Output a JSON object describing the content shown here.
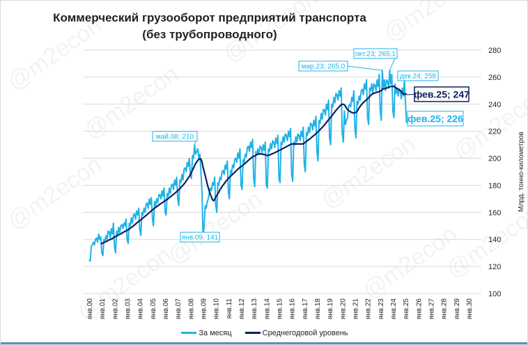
{
  "watermark": "@m2econ",
  "colors": {
    "monthly": "#1fb2e8",
    "average": "#0d1f5c",
    "grid": "#d9d9d9"
  },
  "chart_data": {
    "type": "line",
    "title": [
      "Коммерческий грузооборот предприятий транспорта",
      "(без трубопроводного)"
    ],
    "ylabel": "Млрд. тонно-километров",
    "ylim": [
      100,
      280
    ],
    "yticks": [
      100,
      120,
      140,
      160,
      180,
      200,
      220,
      240,
      260,
      280
    ],
    "xticks": [
      "янв.00",
      "янв.01",
      "янв.02",
      "янв.03",
      "янв.04",
      "янв.05",
      "янв.06",
      "янв.07",
      "янв.08",
      "янв.09",
      "янв.10",
      "янв.11",
      "янв.12",
      "янв.13",
      "янв.14",
      "янв.15",
      "янв.16",
      "янв.17",
      "янв.18",
      "янв.19",
      "янв.20",
      "янв.21",
      "янв.22",
      "янв.23",
      "янв.24",
      "янв.25",
      "янв.26",
      "янв.27",
      "янв.28",
      "янв.29",
      "янв.30"
    ],
    "x_start": "янв.00",
    "x_end": "янв.30",
    "grid": true,
    "legend_placement": "bottom",
    "series": [
      {
        "name": "За месяц",
        "frequency": "monthly",
        "start": "янв.00",
        "values": [
          125,
          124,
          135,
          136,
          138,
          136,
          140,
          141,
          138,
          144,
          140,
          142,
          130,
          128,
          140,
          139,
          143,
          140,
          146,
          146,
          141,
          148,
          144,
          152,
          135,
          130,
          146,
          144,
          149,
          145,
          150,
          151,
          148,
          152,
          150,
          155,
          140,
          137,
          152,
          150,
          156,
          152,
          158,
          159,
          155,
          161,
          158,
          163,
          147,
          143,
          160,
          158,
          163,
          160,
          166,
          167,
          163,
          170,
          166,
          171,
          155,
          150,
          168,
          165,
          170,
          167,
          173,
          173,
          170,
          176,
          172,
          178,
          160,
          158,
          174,
          172,
          178,
          174,
          180,
          181,
          177,
          184,
          180,
          186,
          170,
          165,
          184,
          182,
          188,
          184,
          192,
          193,
          190,
          197,
          194,
          200,
          188,
          185,
          202,
          200,
          210,
          203,
          205,
          207,
          200,
          203,
          190,
          175,
          141,
          150,
          165,
          163,
          168,
          170,
          175,
          178,
          176,
          182,
          180,
          186,
          165,
          160,
          182,
          180,
          186,
          184,
          190,
          191,
          188,
          195,
          192,
          198,
          175,
          170,
          191,
          189,
          195,
          193,
          199,
          200,
          197,
          204,
          200,
          207,
          180,
          177,
          199,
          197,
          203,
          201,
          208,
          209,
          205,
          212,
          208,
          214,
          185,
          179,
          205,
          203,
          207,
          203,
          209,
          208,
          204,
          210,
          206,
          212,
          180,
          178,
          207,
          205,
          211,
          207,
          213,
          212,
          208,
          215,
          211,
          217,
          185,
          182,
          212,
          210,
          216,
          212,
          218,
          217,
          213,
          220,
          216,
          222,
          188,
          183,
          212,
          210,
          216,
          212,
          218,
          217,
          213,
          220,
          216,
          223,
          195,
          190,
          219,
          217,
          223,
          219,
          226,
          225,
          221,
          228,
          224,
          231,
          205,
          198,
          228,
          226,
          233,
          229,
          236,
          236,
          232,
          240,
          236,
          243,
          215,
          210,
          240,
          238,
          245,
          241,
          248,
          247,
          243,
          250,
          246,
          252,
          218,
          212,
          235,
          225,
          228,
          230,
          238,
          240,
          238,
          245,
          242,
          250,
          222,
          215,
          242,
          240,
          246,
          243,
          250,
          251,
          247,
          255,
          251,
          258,
          230,
          225,
          252,
          250,
          255,
          248,
          255,
          254,
          250,
          258,
          253,
          262,
          235,
          228,
          265.0,
          252,
          258,
          250,
          258,
          257,
          252,
          265.1,
          255,
          262,
          235,
          230,
          255,
          248,
          252,
          246,
          251,
          250,
          244,
          252,
          246,
          258,
          240,
          226
        ]
      },
      {
        "name": "Среднегодовой уровень",
        "definition": "12-month moving average of За месяц"
      }
    ],
    "annotations": [
      {
        "series": "За месяц",
        "date": "май.08",
        "value": 210,
        "label": "май.08; 210"
      },
      {
        "series": "За месяц",
        "date": "янв.09",
        "value": 141,
        "label": "янв.09; 141"
      },
      {
        "series": "За месяц",
        "date": "мар.23",
        "value": 265.0,
        "label": "мар.23; 265,0"
      },
      {
        "series": "За месяц",
        "date": "окт.23",
        "value": 265.1,
        "label": "окт.23; 265,1"
      },
      {
        "series": "За месяц",
        "date": "дек.24",
        "value": 258,
        "label": "дек.24; 258"
      },
      {
        "series": "Среднегодовой уровень",
        "date": "фев.25",
        "value": 247,
        "label": "фев.25; 247"
      },
      {
        "series": "За месяц",
        "date": "фев.25",
        "value": 226,
        "label": "фев.25; 226"
      }
    ]
  }
}
